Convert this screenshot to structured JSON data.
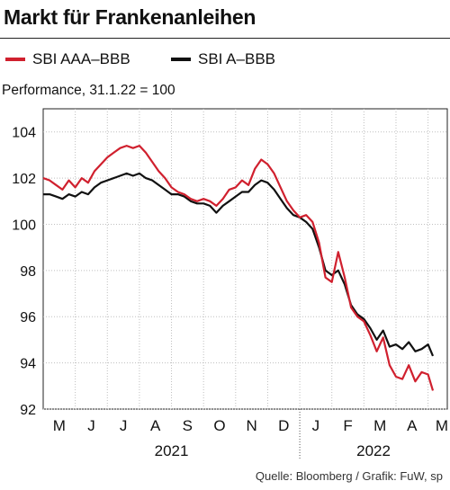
{
  "title": "Markt für Frankenanleihen",
  "source": "Quelle: Bloomberg / Grafik: FuW, sp",
  "colors": {
    "series_red": "#d0202e",
    "series_black": "#111111",
    "grid": "#bfbfbf"
  },
  "chart_data": {
    "type": "line",
    "title": "Markt für Frankenanleihen",
    "ylabel": "Performance, 31.1.22 = 100",
    "xlabel": "",
    "ylim": [
      92,
      105
    ],
    "yticks": [
      92,
      94,
      96,
      98,
      100,
      102,
      104
    ],
    "x_month_labels": [
      "M",
      "J",
      "J",
      "A",
      "S",
      "O",
      "N",
      "D",
      "J",
      "F",
      "M",
      "A",
      "M"
    ],
    "year_labels": [
      "2021",
      "2022"
    ],
    "grid": true,
    "legend_position": "top",
    "x_unit": "months since 1 May 2021",
    "x_range": [
      0,
      12.6
    ],
    "series": [
      {
        "name": "SBI AAA–BBB",
        "color": "#d0202e",
        "x": [
          0,
          0.2,
          0.4,
          0.6,
          0.8,
          1.0,
          1.2,
          1.4,
          1.6,
          1.8,
          2.0,
          2.2,
          2.4,
          2.6,
          2.8,
          3.0,
          3.2,
          3.4,
          3.6,
          3.8,
          4.0,
          4.2,
          4.4,
          4.6,
          4.8,
          5.0,
          5.2,
          5.4,
          5.6,
          5.8,
          6.0,
          6.2,
          6.4,
          6.6,
          6.8,
          7.0,
          7.2,
          7.4,
          7.6,
          7.8,
          8.0,
          8.2,
          8.4,
          8.6,
          8.8,
          9.0,
          9.2,
          9.4,
          9.6,
          9.8,
          10.0,
          10.2,
          10.4,
          10.6,
          10.8,
          11.0,
          11.2,
          11.4,
          11.6,
          11.8,
          12.0,
          12.15
        ],
        "values": [
          102.0,
          101.9,
          101.7,
          101.5,
          101.9,
          101.6,
          102.0,
          101.8,
          102.3,
          102.6,
          102.9,
          103.1,
          103.3,
          103.4,
          103.3,
          103.4,
          103.1,
          102.7,
          102.3,
          102.0,
          101.6,
          101.4,
          101.3,
          101.1,
          101.0,
          101.1,
          101.0,
          100.8,
          101.1,
          101.5,
          101.6,
          101.9,
          101.7,
          102.4,
          102.8,
          102.6,
          102.2,
          101.6,
          101.0,
          100.6,
          100.3,
          100.4,
          100.1,
          99.2,
          97.7,
          97.5,
          98.8,
          97.7,
          96.4,
          96.0,
          95.8,
          95.2,
          94.5,
          95.1,
          93.9,
          93.4,
          93.3,
          93.9,
          93.2,
          93.6,
          93.5,
          92.8
        ]
      },
      {
        "name": "SBI A–BBB",
        "color": "#111111",
        "x": [
          0,
          0.2,
          0.4,
          0.6,
          0.8,
          1.0,
          1.2,
          1.4,
          1.6,
          1.8,
          2.0,
          2.2,
          2.4,
          2.6,
          2.8,
          3.0,
          3.2,
          3.4,
          3.6,
          3.8,
          4.0,
          4.2,
          4.4,
          4.6,
          4.8,
          5.0,
          5.2,
          5.4,
          5.6,
          5.8,
          6.0,
          6.2,
          6.4,
          6.6,
          6.8,
          7.0,
          7.2,
          7.4,
          7.6,
          7.8,
          8.0,
          8.2,
          8.4,
          8.6,
          8.8,
          9.0,
          9.2,
          9.4,
          9.6,
          9.8,
          10.0,
          10.2,
          10.4,
          10.6,
          10.8,
          11.0,
          11.2,
          11.4,
          11.6,
          11.8,
          12.0,
          12.15
        ],
        "values": [
          101.3,
          101.3,
          101.2,
          101.1,
          101.3,
          101.2,
          101.4,
          101.3,
          101.6,
          101.8,
          101.9,
          102.0,
          102.1,
          102.2,
          102.1,
          102.2,
          102.0,
          101.9,
          101.7,
          101.5,
          101.3,
          101.3,
          101.2,
          101.0,
          100.9,
          100.9,
          100.8,
          100.5,
          100.8,
          101.0,
          101.2,
          101.4,
          101.4,
          101.7,
          101.9,
          101.8,
          101.5,
          101.1,
          100.7,
          100.4,
          100.3,
          100.1,
          99.8,
          99.0,
          98.0,
          97.8,
          98.0,
          97.4,
          96.5,
          96.1,
          95.9,
          95.5,
          95.0,
          95.4,
          94.7,
          94.8,
          94.6,
          94.9,
          94.5,
          94.6,
          94.8,
          94.3
        ]
      }
    ]
  }
}
